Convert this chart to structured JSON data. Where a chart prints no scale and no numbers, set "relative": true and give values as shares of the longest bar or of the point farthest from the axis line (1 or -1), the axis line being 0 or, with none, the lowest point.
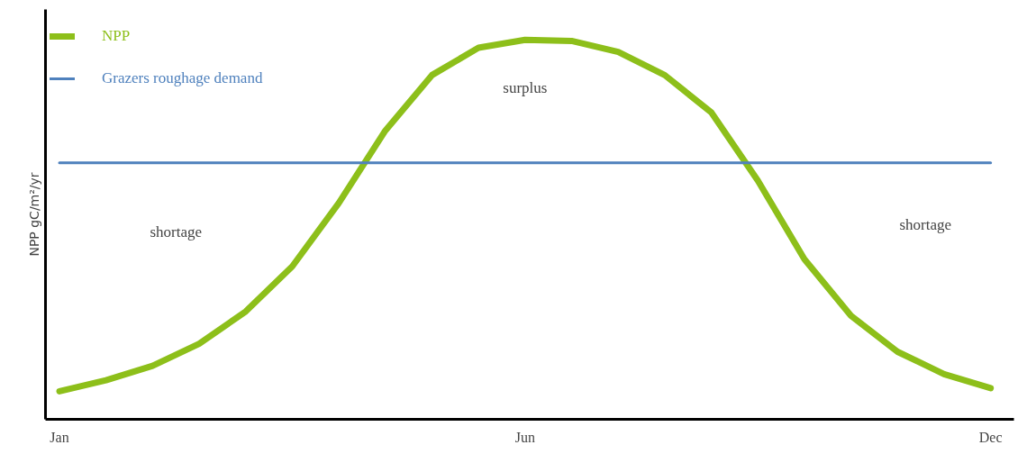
{
  "chart_data": {
    "type": "line",
    "relative": true,
    "ylabel": "NPP gC/m²/yr",
    "categories": [
      "Jan",
      null,
      null,
      null,
      null,
      null,
      null,
      null,
      null,
      null,
      "Jun",
      null,
      null,
      null,
      null,
      null,
      null,
      null,
      null,
      null,
      "Dec"
    ],
    "series": [
      {
        "name": "NPP",
        "color": "#8dbf1a",
        "values": [
          0.074,
          0.103,
          0.141,
          0.199,
          0.284,
          0.403,
          0.57,
          0.761,
          0.907,
          0.979,
          1.0,
          0.997,
          0.968,
          0.907,
          0.809,
          0.629,
          0.422,
          0.273,
          0.178,
          0.119,
          0.082
        ]
      },
      {
        "name": "Grazers roughage demand",
        "color": "#4f81bd",
        "values": [
          0.676,
          0.676,
          0.676,
          0.676,
          0.676,
          0.676,
          0.676,
          0.676,
          0.676,
          0.676,
          0.676,
          0.676,
          0.676,
          0.676,
          0.676,
          0.676,
          0.676,
          0.676,
          0.676,
          0.676,
          0.676
        ]
      }
    ],
    "annotations": [
      "surplus",
      "shortage",
      "shortage"
    ],
    "legend": "top left",
    "grid": false,
    "marker": "none",
    "line_style": "solid"
  }
}
